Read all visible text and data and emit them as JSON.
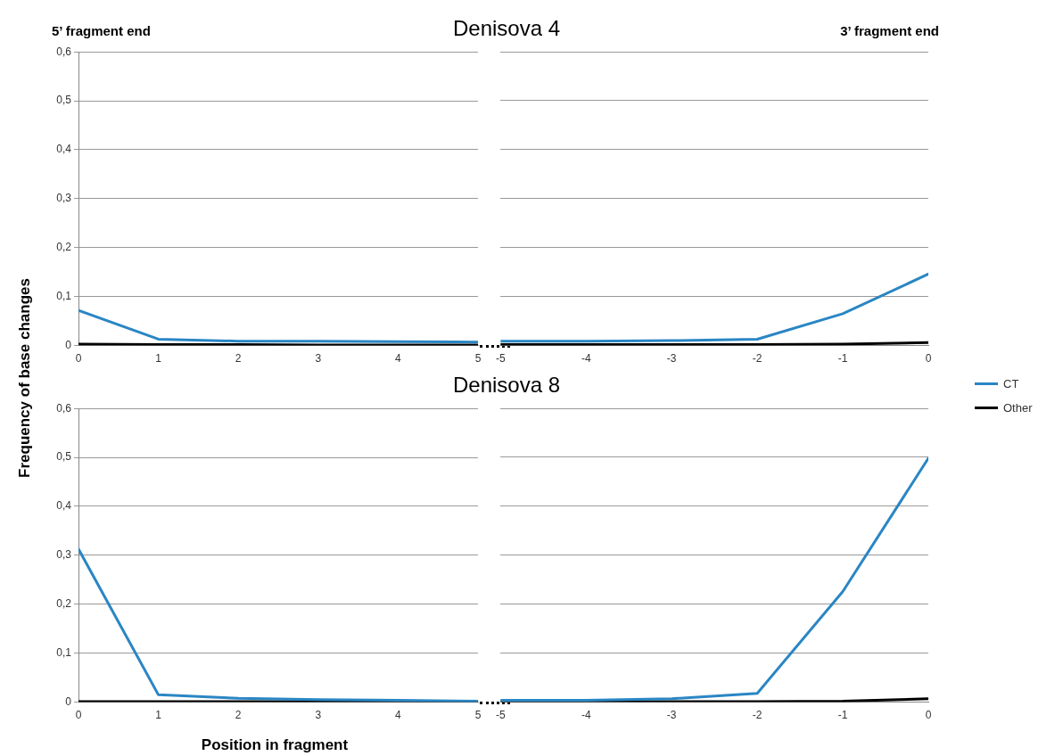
{
  "chart_data": [
    {
      "type": "line",
      "title": "Denisova 4",
      "ylabel": "Frequency of base changes",
      "annotations": [
        "5’ fragment end"
      ],
      "legend": "right",
      "grid": "y",
      "x": [
        0,
        1,
        2,
        3,
        4,
        5
      ],
      "xlim": [
        0,
        5
      ],
      "xticks": [
        0,
        1,
        2,
        3,
        4,
        5
      ],
      "ylim": [
        0,
        0.6
      ],
      "yticks": [
        {
          "value": 0,
          "label": "0"
        },
        {
          "value": 0.1,
          "label": "0,1"
        },
        {
          "value": 0.2,
          "label": "0,2"
        },
        {
          "value": 0.3,
          "label": "0,3"
        },
        {
          "value": 0.4,
          "label": "0,4"
        },
        {
          "value": 0.5,
          "label": "0,5"
        },
        {
          "value": 0.6,
          "label": "0,6"
        }
      ],
      "series": [
        {
          "name": "CT",
          "color": "#2a86c4",
          "values": [
            0.072,
            0.013,
            0.009,
            0.009,
            0.008,
            0.007
          ]
        },
        {
          "name": "Other",
          "color": "#000000",
          "values": [
            0.003,
            0.002,
            0.002,
            0.001,
            0.001,
            0.001
          ]
        }
      ]
    },
    {
      "type": "line",
      "annotations": [
        "3’ fragment end"
      ],
      "grid": "y",
      "tick_labels": "x",
      "x": [
        -5,
        -4,
        -3,
        -2,
        -1,
        0
      ],
      "xlim": [
        -5,
        0
      ],
      "xticks": [
        -5,
        -4,
        -3,
        -2,
        -1,
        0
      ],
      "ylim": [
        0,
        0.6
      ],
      "series": [
        {
          "color": "#2a86c4",
          "values": [
            0.009,
            0.009,
            0.01,
            0.013,
            0.065,
            0.146
          ]
        },
        {
          "color": "#000000",
          "values": [
            0.002,
            0.002,
            0.002,
            0.002,
            0.003,
            0.006
          ]
        }
      ]
    },
    {
      "type": "line",
      "title": "Denisova 8",
      "xlabel": "Position in fragment",
      "grid": "y",
      "x": [
        0,
        1,
        2,
        3,
        4,
        5
      ],
      "xlim": [
        0,
        5
      ],
      "xticks": [
        0,
        1,
        2,
        3,
        4,
        5
      ],
      "ylim": [
        0,
        0.6
      ],
      "yticks": [
        {
          "value": 0,
          "label": "0"
        },
        {
          "value": 0.1,
          "label": "0,1"
        },
        {
          "value": 0.2,
          "label": "0,2"
        },
        {
          "value": 0.3,
          "label": "0,3"
        },
        {
          "value": 0.4,
          "label": "0,4"
        },
        {
          "value": 0.5,
          "label": "0,5"
        },
        {
          "value": 0.6,
          "label": "0,6"
        }
      ],
      "series": [
        {
          "color": "#2a86c4",
          "values": [
            0.313,
            0.015,
            0.008,
            0.005,
            0.004,
            0.002
          ]
        },
        {
          "color": "#000000",
          "values": [
            0.001,
            0.001,
            0.001,
            0.001,
            0.001,
            0.001
          ]
        }
      ]
    },
    {
      "type": "line",
      "grid": "y",
      "tick_labels": "x",
      "x": [
        -5,
        -4,
        -3,
        -2,
        -1,
        0
      ],
      "xlim": [
        -5,
        0
      ],
      "xticks": [
        -5,
        -4,
        -3,
        -2,
        -1,
        0
      ],
      "ylim": [
        0,
        0.6
      ],
      "series": [
        {
          "color": "#2a86c4",
          "values": [
            0.004,
            0.004,
            0.007,
            0.018,
            0.226,
            0.498
          ]
        },
        {
          "color": "#000000",
          "values": [
            0.001,
            0.001,
            0.001,
            0.001,
            0.002,
            0.007
          ]
        }
      ]
    }
  ]
}
